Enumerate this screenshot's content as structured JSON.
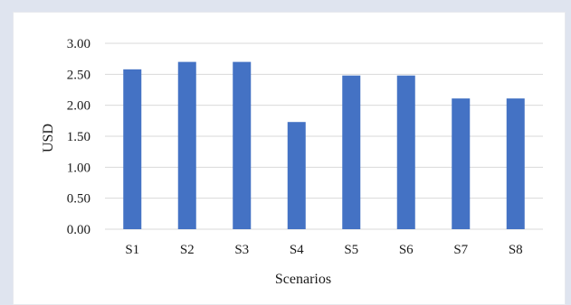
{
  "chart_data": {
    "type": "bar",
    "categories": [
      "S1",
      "S2",
      "S3",
      "S4",
      "S5",
      "S6",
      "S7",
      "S8"
    ],
    "values": [
      2.58,
      2.7,
      2.7,
      1.73,
      2.48,
      2.48,
      2.11,
      2.11
    ],
    "xlabel": "Scenarios",
    "ylabel": "USD",
    "ylim": [
      0,
      3
    ],
    "yticks": [
      "0.00",
      "0.50",
      "1.00",
      "1.50",
      "2.00",
      "2.50",
      "3.00"
    ],
    "grid": true,
    "legend": "none",
    "bar_color": "#4472c4",
    "grid_color": "#d9d9d9"
  }
}
